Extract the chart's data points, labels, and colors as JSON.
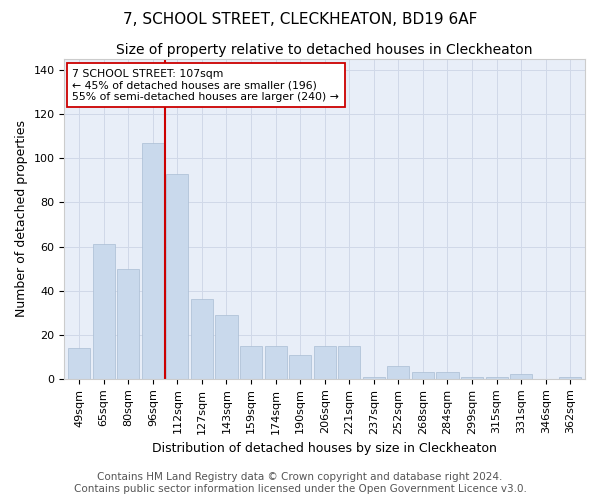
{
  "title": "7, SCHOOL STREET, CLECKHEATON, BD19 6AF",
  "subtitle": "Size of property relative to detached houses in Cleckheaton",
  "xlabel": "Distribution of detached houses by size in Cleckheaton",
  "ylabel": "Number of detached properties",
  "categories": [
    "49sqm",
    "65sqm",
    "80sqm",
    "96sqm",
    "112sqm",
    "127sqm",
    "143sqm",
    "159sqm",
    "174sqm",
    "190sqm",
    "206sqm",
    "221sqm",
    "237sqm",
    "252sqm",
    "268sqm",
    "284sqm",
    "299sqm",
    "315sqm",
    "331sqm",
    "346sqm",
    "362sqm"
  ],
  "values": [
    14,
    61,
    50,
    107,
    93,
    36,
    29,
    15,
    15,
    11,
    15,
    15,
    1,
    6,
    3,
    3,
    1,
    1,
    2,
    0,
    1
  ],
  "bar_color": "#c9d9ec",
  "bar_edge_color": "#aabdd4",
  "vline_x": 3.5,
  "vline_color": "#cc0000",
  "ylim": [
    0,
    145
  ],
  "yticks": [
    0,
    20,
    40,
    60,
    80,
    100,
    120,
    140
  ],
  "annotation_text": "7 SCHOOL STREET: 107sqm\n← 45% of detached houses are smaller (196)\n55% of semi-detached houses are larger (240) →",
  "footer1": "Contains HM Land Registry data © Crown copyright and database right 2024.",
  "footer2": "Contains public sector information licensed under the Open Government Licence v3.0.",
  "grid_color": "#d0d8e8",
  "background_color": "#e8eef8",
  "title_fontsize": 11,
  "subtitle_fontsize": 10,
  "label_fontsize": 9,
  "tick_fontsize": 8,
  "footer_fontsize": 7.5
}
